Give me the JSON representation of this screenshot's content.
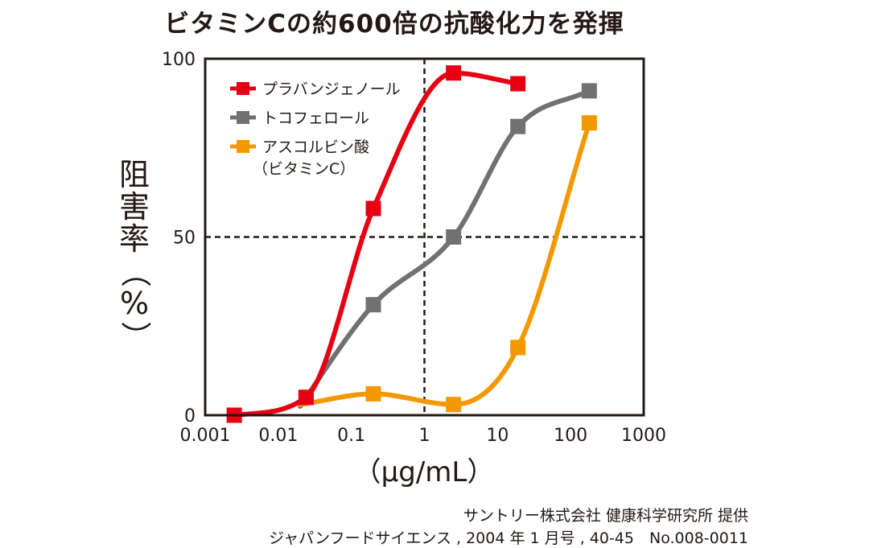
{
  "chart_data": {
    "type": "line",
    "title": "ビタミンCの約600倍の抗酸化力を発揮",
    "xlabel": "（μg/mL）",
    "ylabel_chars": [
      "阻",
      "害",
      "率",
      "（",
      "%",
      "）"
    ],
    "x_scale": "log",
    "xlim": [
      0.001,
      1000
    ],
    "ylim": [
      0,
      100
    ],
    "xticks": [
      0.001,
      0.01,
      0.1,
      1,
      10,
      100,
      1000
    ],
    "xtick_labels": [
      "0.001",
      "0.01",
      "0.1",
      "1",
      "10",
      "100",
      "1000"
    ],
    "yticks": [
      0,
      50,
      100
    ],
    "ytick_labels": [
      "0",
      "50",
      "100"
    ],
    "reference_lines": {
      "x": 1,
      "y": 50
    },
    "grid": false,
    "legend_position": "top-left",
    "series": [
      {
        "name": "プラバンジェノール",
        "color": "#e60012",
        "points": [
          [
            0.0025,
            0
          ],
          [
            0.024,
            5
          ],
          [
            0.2,
            58
          ],
          [
            2.5,
            96
          ],
          [
            19,
            93
          ]
        ],
        "curve_start": [
          0.0025,
          0
        ]
      },
      {
        "name": "トコフェロール",
        "color": "#727171",
        "points": [
          [
            0.024,
            5
          ],
          [
            0.2,
            31
          ],
          [
            2.5,
            50
          ],
          [
            19,
            81
          ],
          [
            180,
            91
          ]
        ],
        "curve_start": [
          0.02,
          2.5
        ]
      },
      {
        "name": "アスコルビン酸",
        "name_line2": "（ビタミンC）",
        "color": "#f39800",
        "points": [
          [
            0.2,
            6
          ],
          [
            2.5,
            3
          ],
          [
            19,
            19
          ],
          [
            180,
            82
          ]
        ],
        "curve_start": [
          0.02,
          3
        ]
      }
    ]
  },
  "source": {
    "line1": "サントリー株式会社 健康科学研究所 提供",
    "line2": "ジャパンフードサイエンス , 2004 年 1 月号 , 40-45　No.008-0011"
  }
}
